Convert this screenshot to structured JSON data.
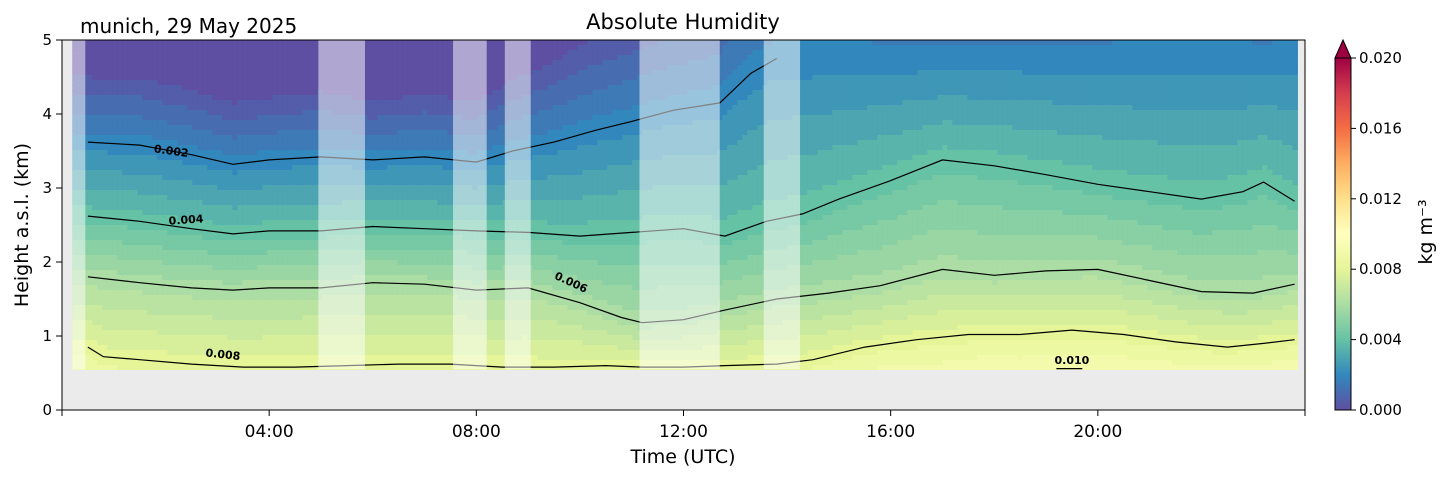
{
  "header": {
    "location_date": "munich, 29 May 2025"
  },
  "chart_data": {
    "type": "heatmap",
    "title": "Absolute Humidity",
    "xlabel": "Time (UTC)",
    "ylabel": "Height a.s.l. (km)",
    "xlim_hours": [
      0,
      24
    ],
    "ylim_km": [
      0,
      5
    ],
    "x_ticks": [
      {
        "hour": 4,
        "label": "04:00"
      },
      {
        "hour": 8,
        "label": "08:00"
      },
      {
        "hour": 12,
        "label": "12:00"
      },
      {
        "hour": 16,
        "label": "16:00"
      },
      {
        "hour": 20,
        "label": "20:00"
      }
    ],
    "y_ticks": [
      {
        "km": 0,
        "label": "0"
      },
      {
        "km": 1,
        "label": "1"
      },
      {
        "km": 2,
        "label": "2"
      },
      {
        "km": 3,
        "label": "3"
      },
      {
        "km": 4,
        "label": "4"
      },
      {
        "km": 5,
        "label": "5"
      }
    ],
    "data_hours": [
      0.2,
      23.8
    ],
    "data_bottom_km": 0.55,
    "contour_lines": [
      {
        "value": 0.002,
        "label": "0.002",
        "label_hour": 2.1,
        "label_km": 3.45,
        "label_angle": 8,
        "points": [
          [
            0.5,
            3.62
          ],
          [
            1.5,
            3.58
          ],
          [
            2.5,
            3.45
          ],
          [
            3.3,
            3.32
          ],
          [
            4.0,
            3.38
          ],
          [
            5.0,
            3.42
          ],
          [
            6.0,
            3.38
          ],
          [
            7.0,
            3.42
          ],
          [
            8.0,
            3.35
          ],
          [
            8.7,
            3.5
          ],
          [
            9.5,
            3.62
          ],
          [
            10.3,
            3.78
          ],
          [
            11.0,
            3.9
          ],
          [
            11.8,
            4.05
          ],
          [
            12.7,
            4.15
          ],
          [
            13.3,
            4.55
          ],
          [
            13.8,
            4.75
          ]
        ]
      },
      {
        "value": 0.004,
        "label": "0.004",
        "label_hour": 2.4,
        "label_km": 2.52,
        "label_angle": -4,
        "points": [
          [
            0.5,
            2.62
          ],
          [
            1.5,
            2.55
          ],
          [
            2.5,
            2.45
          ],
          [
            3.3,
            2.38
          ],
          [
            4.0,
            2.42
          ],
          [
            5.0,
            2.42
          ],
          [
            6.0,
            2.48
          ],
          [
            7.0,
            2.45
          ],
          [
            8.0,
            2.42
          ],
          [
            9.0,
            2.4
          ],
          [
            10.0,
            2.35
          ],
          [
            11.0,
            2.4
          ],
          [
            12.0,
            2.45
          ],
          [
            12.8,
            2.35
          ],
          [
            13.6,
            2.55
          ],
          [
            14.3,
            2.65
          ],
          [
            15.0,
            2.85
          ],
          [
            16.0,
            3.1
          ],
          [
            17.0,
            3.38
          ],
          [
            18.0,
            3.3
          ],
          [
            19.0,
            3.18
          ],
          [
            20.0,
            3.05
          ],
          [
            21.0,
            2.95
          ],
          [
            22.0,
            2.85
          ],
          [
            22.8,
            2.95
          ],
          [
            23.2,
            3.08
          ],
          [
            23.8,
            2.82
          ]
        ]
      },
      {
        "value": 0.006,
        "label": "0.006",
        "label_hour": 9.8,
        "label_km": 1.68,
        "label_angle": 25,
        "points": [
          [
            0.5,
            1.8
          ],
          [
            1.5,
            1.72
          ],
          [
            2.5,
            1.65
          ],
          [
            3.3,
            1.62
          ],
          [
            4.0,
            1.65
          ],
          [
            5.0,
            1.65
          ],
          [
            6.0,
            1.72
          ],
          [
            7.0,
            1.7
          ],
          [
            8.0,
            1.62
          ],
          [
            9.0,
            1.65
          ],
          [
            10.0,
            1.45
          ],
          [
            10.8,
            1.25
          ],
          [
            11.2,
            1.18
          ],
          [
            12.0,
            1.22
          ],
          [
            12.8,
            1.35
          ],
          [
            13.8,
            1.5
          ],
          [
            14.8,
            1.58
          ],
          [
            15.8,
            1.68
          ],
          [
            17.0,
            1.9
          ],
          [
            18.0,
            1.82
          ],
          [
            19.0,
            1.88
          ],
          [
            20.0,
            1.9
          ],
          [
            21.0,
            1.75
          ],
          [
            22.0,
            1.6
          ],
          [
            23.0,
            1.58
          ],
          [
            23.8,
            1.7
          ]
        ]
      },
      {
        "value": 0.008,
        "label": "0.008",
        "label_hour": 3.1,
        "label_km": 0.7,
        "label_angle": 6,
        "points": [
          [
            0.5,
            0.85
          ],
          [
            0.8,
            0.72
          ],
          [
            1.5,
            0.68
          ],
          [
            2.5,
            0.62
          ],
          [
            3.5,
            0.58
          ],
          [
            4.5,
            0.58
          ],
          [
            5.5,
            0.6
          ],
          [
            6.5,
            0.62
          ],
          [
            7.5,
            0.62
          ],
          [
            8.5,
            0.58
          ],
          [
            9.5,
            0.58
          ],
          [
            10.5,
            0.6
          ],
          [
            11.2,
            0.58
          ],
          [
            12.0,
            0.58
          ],
          [
            12.8,
            0.6
          ],
          [
            13.8,
            0.62
          ],
          [
            14.5,
            0.68
          ],
          [
            15.5,
            0.85
          ],
          [
            16.5,
            0.95
          ],
          [
            17.5,
            1.02
          ],
          [
            18.5,
            1.02
          ],
          [
            19.5,
            1.08
          ],
          [
            20.5,
            1.02
          ],
          [
            21.5,
            0.92
          ],
          [
            22.5,
            0.85
          ],
          [
            23.2,
            0.9
          ],
          [
            23.8,
            0.95
          ]
        ]
      },
      {
        "value": 0.01,
        "label": "0.010",
        "label_hour": 19.5,
        "label_km": 0.62,
        "label_angle": 0,
        "points": [
          [
            19.2,
            0.56
          ],
          [
            19.7,
            0.56
          ]
        ]
      }
    ],
    "gap_bands_hours": [
      [
        0.2,
        0.45
      ],
      [
        4.95,
        5.85
      ],
      [
        7.55,
        8.2
      ],
      [
        8.55,
        9.05
      ],
      [
        11.15,
        12.7
      ],
      [
        13.55,
        14.25
      ]
    ],
    "colorbar": {
      "label": "kg m⁻³",
      "range": [
        0.0,
        0.02
      ],
      "ticks": [
        {
          "value": 0.0,
          "label": "0.000"
        },
        {
          "value": 0.004,
          "label": "0.004"
        },
        {
          "value": 0.008,
          "label": "0.008"
        },
        {
          "value": 0.012,
          "label": "0.012"
        },
        {
          "value": 0.016,
          "label": "0.016"
        },
        {
          "value": 0.02,
          "label": "0.020"
        }
      ],
      "extend": "max",
      "colormap": "Spectral_r",
      "palette": [
        "#5e4fa2",
        "#3288bd",
        "#66c2a5",
        "#abdda4",
        "#e6f598",
        "#ffffbf",
        "#fee08b",
        "#fdae61",
        "#f46d43",
        "#d53e4f",
        "#9e0142"
      ]
    },
    "background_color": "#ebebeb"
  }
}
